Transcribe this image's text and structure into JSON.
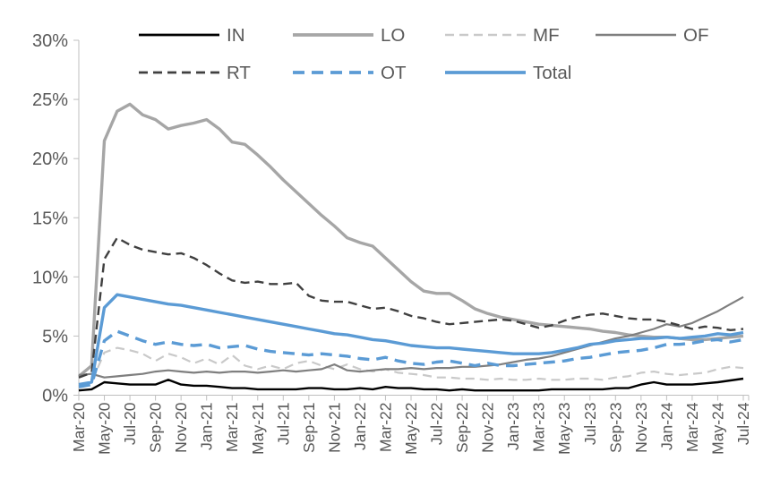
{
  "chart_data": {
    "type": "line",
    "title": "",
    "xlabel": "",
    "ylabel": "",
    "ylim": [
      0,
      30
    ],
    "grid": false,
    "legend_position": "top",
    "axis_color": "#bfbfbf",
    "label_color": "#595959",
    "blue_accent": "#5b9bd5",
    "y_tick_labels": [
      "30%",
      "25%",
      "20%",
      "15%",
      "10%",
      "5%",
      "0%"
    ],
    "x_tick_labels": [
      "Mar-20",
      "May-20",
      "Jul-20",
      "Sep-20",
      "Nov-20",
      "Jan-21",
      "Mar-21",
      "May-21",
      "Jul-21",
      "Sep-21",
      "Nov-21",
      "Jan-22",
      "Mar-22",
      "May-22",
      "Jul-22",
      "Sep-22",
      "Nov-22",
      "Jan-23",
      "Mar-23",
      "May-23",
      "Jul-23",
      "Sep-23",
      "Nov-23",
      "Jan-24",
      "Mar-24",
      "May-24",
      "Jul-24"
    ],
    "x": [
      "Mar-20",
      "Apr-20",
      "May-20",
      "Jun-20",
      "Jul-20",
      "Aug-20",
      "Sep-20",
      "Oct-20",
      "Nov-20",
      "Dec-20",
      "Jan-21",
      "Feb-21",
      "Mar-21",
      "Apr-21",
      "May-21",
      "Jun-21",
      "Jul-21",
      "Aug-21",
      "Sep-21",
      "Oct-21",
      "Nov-21",
      "Dec-21",
      "Jan-22",
      "Feb-22",
      "Mar-22",
      "Apr-22",
      "May-22",
      "Jun-22",
      "Jul-22",
      "Aug-22",
      "Sep-22",
      "Oct-22",
      "Nov-22",
      "Dec-22",
      "Jan-23",
      "Feb-23",
      "Mar-23",
      "Apr-23",
      "May-23",
      "Jun-23",
      "Jul-23",
      "Aug-23",
      "Sep-23",
      "Oct-23",
      "Nov-23",
      "Dec-23",
      "Jan-24",
      "Feb-24",
      "Mar-24",
      "Apr-24",
      "May-24",
      "Jun-24",
      "Jul-24"
    ],
    "legend_rows": [
      [
        "IN",
        "LO",
        "MF",
        "OF"
      ],
      [
        "RT",
        "OT",
        "Total"
      ]
    ],
    "series": [
      {
        "name": "IN",
        "color": "#000000",
        "style": "solid",
        "width": 2.4,
        "values": [
          0.4,
          0.5,
          1.1,
          1.0,
          0.9,
          0.9,
          0.9,
          1.3,
          0.9,
          0.8,
          0.8,
          0.7,
          0.6,
          0.6,
          0.5,
          0.5,
          0.5,
          0.5,
          0.6,
          0.6,
          0.5,
          0.5,
          0.6,
          0.5,
          0.7,
          0.6,
          0.6,
          0.5,
          0.5,
          0.4,
          0.5,
          0.4,
          0.4,
          0.4,
          0.4,
          0.4,
          0.4,
          0.5,
          0.5,
          0.5,
          0.5,
          0.5,
          0.6,
          0.6,
          0.9,
          1.1,
          0.9,
          0.9,
          0.9,
          1.0,
          1.1,
          1.25,
          1.4
        ]
      },
      {
        "name": "LO",
        "color": "#a6a6a6",
        "style": "solid",
        "width": 3.4,
        "values": [
          1.6,
          2.5,
          21.5,
          24.0,
          24.6,
          23.7,
          23.3,
          22.5,
          22.8,
          23.0,
          23.3,
          22.5,
          21.4,
          21.2,
          20.3,
          19.3,
          18.2,
          17.2,
          16.2,
          15.2,
          14.3,
          13.3,
          12.9,
          12.6,
          11.6,
          10.6,
          9.6,
          8.8,
          8.6,
          8.6,
          8.0,
          7.3,
          6.9,
          6.6,
          6.4,
          6.2,
          6.0,
          5.9,
          5.8,
          5.7,
          5.6,
          5.4,
          5.3,
          5.1,
          5.0,
          4.9,
          4.9,
          4.8,
          4.7,
          4.7,
          4.8,
          4.9,
          5.0
        ]
      },
      {
        "name": "MF",
        "color": "#c9c9c9",
        "style": "dashed",
        "width": 2.2,
        "values": [
          0.9,
          1.1,
          3.6,
          4.0,
          3.8,
          3.5,
          2.9,
          3.5,
          3.2,
          2.7,
          3.1,
          2.6,
          3.4,
          2.5,
          2.2,
          2.5,
          2.2,
          2.7,
          2.9,
          2.5,
          2.2,
          2.6,
          2.2,
          2.0,
          2.2,
          1.9,
          1.8,
          1.7,
          1.5,
          1.5,
          1.4,
          1.4,
          1.3,
          1.4,
          1.3,
          1.3,
          1.4,
          1.3,
          1.3,
          1.4,
          1.4,
          1.3,
          1.5,
          1.6,
          1.9,
          2.0,
          1.8,
          1.7,
          1.8,
          1.9,
          2.2,
          2.4,
          2.3
        ]
      },
      {
        "name": "OF",
        "color": "#7f7f7f",
        "style": "solid",
        "width": 2.2,
        "values": [
          1.7,
          1.8,
          1.5,
          1.6,
          1.7,
          1.8,
          2.0,
          2.1,
          2.0,
          1.9,
          2.0,
          1.9,
          2.0,
          2.0,
          1.9,
          2.0,
          2.1,
          2.0,
          2.1,
          2.2,
          2.6,
          2.1,
          2.0,
          2.1,
          2.2,
          2.2,
          2.3,
          2.2,
          2.3,
          2.3,
          2.4,
          2.4,
          2.5,
          2.6,
          2.8,
          3.0,
          3.1,
          3.3,
          3.6,
          3.9,
          4.2,
          4.5,
          4.8,
          5.0,
          5.3,
          5.6,
          6.0,
          5.8,
          6.1,
          6.6,
          7.1,
          7.7,
          8.3
        ]
      },
      {
        "name": "RT",
        "color": "#404040",
        "style": "dashed",
        "width": 2.4,
        "values": [
          1.5,
          1.9,
          11.5,
          13.3,
          12.7,
          12.3,
          12.1,
          11.9,
          12.0,
          11.6,
          11.0,
          10.3,
          9.7,
          9.5,
          9.6,
          9.4,
          9.4,
          9.5,
          8.4,
          8.0,
          7.9,
          7.9,
          7.6,
          7.3,
          7.4,
          7.1,
          6.7,
          6.5,
          6.2,
          6.0,
          6.1,
          6.2,
          6.3,
          6.4,
          6.3,
          6.0,
          5.7,
          5.9,
          6.3,
          6.6,
          6.8,
          6.9,
          6.7,
          6.5,
          6.4,
          6.4,
          6.2,
          5.9,
          5.6,
          5.8,
          5.7,
          5.5,
          5.6
        ]
      },
      {
        "name": "OT",
        "color": "#5b9bd5",
        "style": "dashed",
        "width": 3.4,
        "values": [
          0.7,
          0.9,
          4.6,
          5.4,
          5.0,
          4.6,
          4.3,
          4.5,
          4.3,
          4.2,
          4.3,
          4.0,
          4.1,
          4.2,
          3.9,
          3.7,
          3.6,
          3.5,
          3.4,
          3.5,
          3.4,
          3.3,
          3.1,
          3.0,
          3.2,
          2.9,
          2.7,
          2.6,
          2.8,
          2.9,
          2.7,
          2.5,
          2.7,
          2.5,
          2.5,
          2.6,
          2.7,
          2.8,
          2.9,
          3.1,
          3.2,
          3.4,
          3.6,
          3.7,
          3.8,
          4.0,
          4.3,
          4.3,
          4.4,
          4.6,
          4.7,
          4.5,
          4.7
        ]
      },
      {
        "name": "Total",
        "color": "#5b9bd5",
        "style": "solid",
        "width": 3.4,
        "values": [
          0.9,
          1.1,
          7.4,
          8.5,
          8.3,
          8.1,
          7.9,
          7.7,
          7.6,
          7.4,
          7.2,
          7.0,
          6.8,
          6.6,
          6.4,
          6.2,
          6.0,
          5.8,
          5.6,
          5.4,
          5.2,
          5.1,
          4.9,
          4.7,
          4.6,
          4.4,
          4.2,
          4.1,
          4.0,
          4.0,
          3.9,
          3.8,
          3.7,
          3.6,
          3.5,
          3.5,
          3.5,
          3.6,
          3.8,
          4.0,
          4.3,
          4.4,
          4.6,
          4.7,
          4.8,
          4.8,
          4.9,
          4.8,
          4.9,
          5.0,
          5.2,
          5.1,
          5.3
        ]
      }
    ]
  }
}
